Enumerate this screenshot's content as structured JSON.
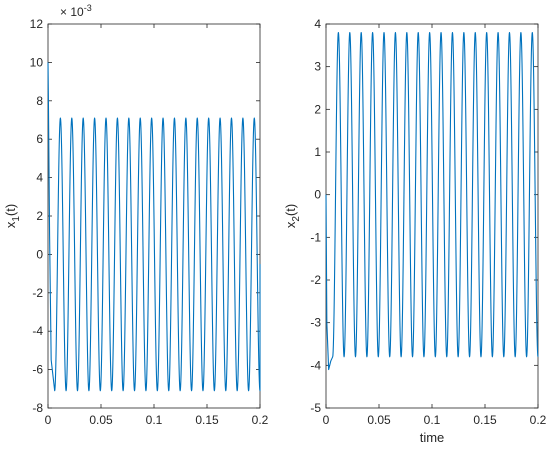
{
  "chart_data": [
    {
      "type": "line",
      "title": "",
      "xlabel": "",
      "ylabel_base": "x",
      "ylabel_sub": "1",
      "ylabel_suffix": "(t)",
      "xlim": [
        0,
        0.2
      ],
      "ylim": [
        -8,
        12
      ],
      "y_exponent_label": "× 10",
      "y_exponent_value": "-3",
      "xticks": [
        "0",
        "0.05",
        "0.1",
        "0.15",
        "0.2"
      ],
      "yticks": [
        "-8",
        "-6",
        "-4",
        "-2",
        "0",
        "2",
        "4",
        "6",
        "8",
        "10",
        "12"
      ],
      "grid": false,
      "series": [
        {
          "color": "#0072bd",
          "values_unit": "1e-3",
          "initial_value": 10,
          "amplitude": 7.1,
          "cycles": 18,
          "transient_end_x": 0.0063,
          "end_x": 0.2,
          "end_value": -0.5
        }
      ]
    },
    {
      "type": "line",
      "title": "",
      "xlabel": "time",
      "ylabel_base": "x",
      "ylabel_sub": "2",
      "ylabel_suffix": "(t)",
      "xlim": [
        0,
        0.2
      ],
      "ylim": [
        -5,
        4
      ],
      "xticks": [
        "0",
        "0.05",
        "0.1",
        "0.15",
        "0.2"
      ],
      "yticks": [
        "-5",
        "-4",
        "-3",
        "-2",
        "-1",
        "0",
        "1",
        "2",
        "3",
        "4"
      ],
      "grid": false,
      "series": [
        {
          "color": "#0072bd",
          "initial_value": 0,
          "transient_min": -4.1,
          "amplitude": 3.8,
          "cycles": 18,
          "transient_end_x": 0.0063,
          "end_x": 0.2,
          "end_value": 3.8
        }
      ]
    }
  ]
}
